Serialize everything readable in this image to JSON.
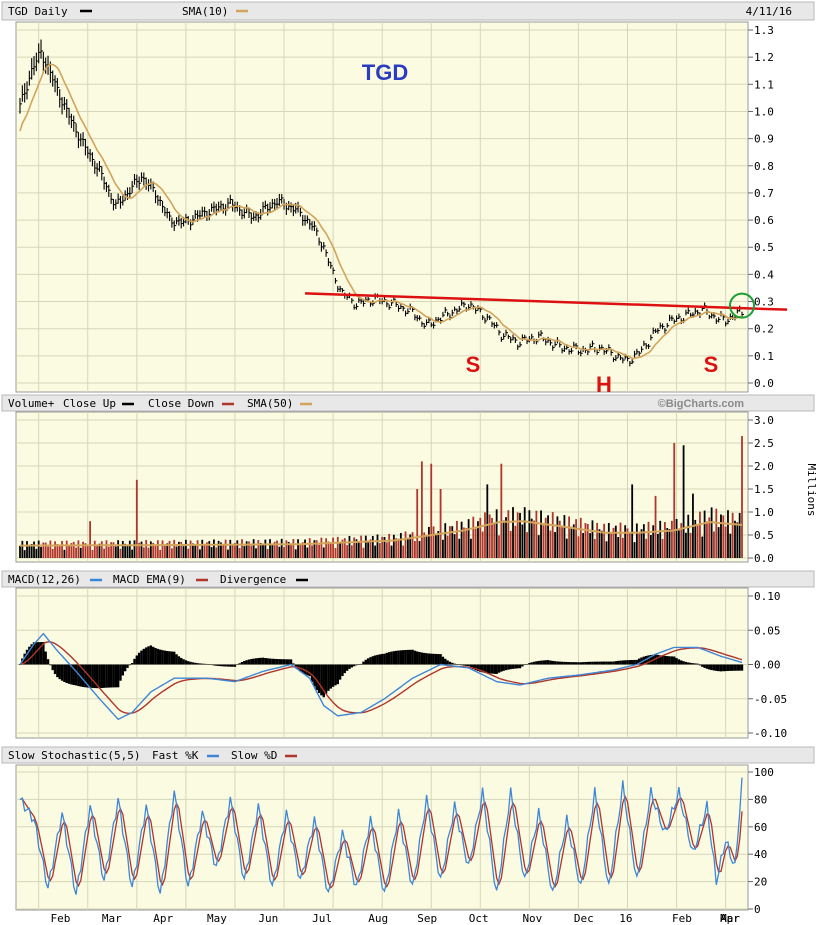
{
  "header": {
    "ticker_label": "TGD Daily",
    "sma_label": "SMA(10)",
    "date": "4/11/16"
  },
  "colors": {
    "panel_bg": "#fbfbe2",
    "header_bg": "#e8e8e8",
    "grid": "#d6d6b8",
    "price_bar": "#000000",
    "sma10": "#d4a35a",
    "vol_up": "#000000",
    "vol_down": "#b0352a",
    "sma50": "#d4a35a",
    "macd": "#3f86d6",
    "macd_ema": "#b0352a",
    "divergence": "#000000",
    "fast_k": "#3f86d6",
    "slow_d": "#b0352a",
    "annotation_red": "#dd1111",
    "title_blue": "#2a3cbf",
    "circle_green": "#1aa033"
  },
  "annotations": {
    "title": "TGD",
    "left_shoulder": "S",
    "head": "H",
    "right_shoulder": "S",
    "watermark": "©BigCharts.com"
  },
  "x_axis": {
    "month_labels": [
      "Feb",
      "Mar",
      "Apr",
      "May",
      "Jun",
      "Jul",
      "Aug",
      "Sep",
      "Oct",
      "Nov",
      "Dec",
      "16",
      "Feb",
      "Mar",
      "Apr"
    ]
  },
  "chart_data": [
    {
      "type": "line",
      "name": "price",
      "title": "TGD Daily",
      "legend": [
        "TGD Daily",
        "SMA(10)"
      ],
      "y_ticks": [
        "0.0",
        "0.1",
        "0.2",
        "0.3",
        "0.4",
        "0.5",
        "0.6",
        "0.7",
        "0.8",
        "0.9",
        "1.0",
        "1.1",
        "1.2",
        "1.3"
      ],
      "ylim": [
        0,
        1.3
      ],
      "neckline": [
        0.33,
        0.27
      ],
      "close_anchors": [
        [
          0,
          1.02
        ],
        [
          5,
          1.15
        ],
        [
          9,
          1.22
        ],
        [
          14,
          1.12
        ],
        [
          20,
          1.0
        ],
        [
          27,
          0.88
        ],
        [
          34,
          0.78
        ],
        [
          41,
          0.65
        ],
        [
          46,
          0.7
        ],
        [
          52,
          0.76
        ],
        [
          58,
          0.7
        ],
        [
          64,
          0.6
        ],
        [
          70,
          0.59
        ],
        [
          80,
          0.63
        ],
        [
          90,
          0.66
        ],
        [
          100,
          0.61
        ],
        [
          110,
          0.67
        ],
        [
          118,
          0.64
        ],
        [
          125,
          0.58
        ],
        [
          130,
          0.5
        ],
        [
          134,
          0.4
        ],
        [
          138,
          0.33
        ],
        [
          144,
          0.29
        ],
        [
          152,
          0.31
        ],
        [
          160,
          0.29
        ],
        [
          168,
          0.26
        ],
        [
          174,
          0.21
        ],
        [
          182,
          0.25
        ],
        [
          192,
          0.29
        ],
        [
          200,
          0.24
        ],
        [
          206,
          0.18
        ],
        [
          213,
          0.15
        ],
        [
          222,
          0.17
        ],
        [
          232,
          0.13
        ],
        [
          240,
          0.12
        ],
        [
          248,
          0.13
        ],
        [
          255,
          0.1
        ],
        [
          260,
          0.08
        ],
        [
          266,
          0.12
        ],
        [
          272,
          0.19
        ],
        [
          279,
          0.23
        ],
        [
          286,
          0.25
        ],
        [
          292,
          0.27
        ],
        [
          298,
          0.24
        ],
        [
          302,
          0.23
        ],
        [
          306,
          0.25
        ],
        [
          309,
          0.26
        ]
      ]
    },
    {
      "type": "bar",
      "name": "volume",
      "title": "Volume+ Close Up / Close Down",
      "legend": [
        "Volume+",
        "Close Up",
        "Close Down",
        "SMA(50)"
      ],
      "y_unit_label": "Millions",
      "y_ticks": [
        "0.0",
        "0.5",
        "1.0",
        "1.5",
        "2.0",
        "2.5",
        "3.0"
      ],
      "ylim": [
        0,
        3.0
      ],
      "spikes": [
        [
          30,
          0.8
        ],
        [
          50,
          1.7
        ],
        [
          170,
          1.5
        ],
        [
          172,
          2.1
        ],
        [
          176,
          2.05
        ],
        [
          180,
          1.5
        ],
        [
          200,
          1.6
        ],
        [
          206,
          2.05
        ],
        [
          262,
          1.6
        ],
        [
          272,
          1.35
        ],
        [
          280,
          2.5
        ],
        [
          284,
          2.45
        ],
        [
          288,
          1.4
        ],
        [
          296,
          1.1
        ],
        [
          309,
          2.65
        ]
      ],
      "sma50_anchors": [
        [
          0,
          0.27
        ],
        [
          60,
          0.28
        ],
        [
          120,
          0.3
        ],
        [
          160,
          0.38
        ],
        [
          190,
          0.6
        ],
        [
          205,
          0.78
        ],
        [
          215,
          0.8
        ],
        [
          230,
          0.7
        ],
        [
          250,
          0.55
        ],
        [
          265,
          0.55
        ],
        [
          280,
          0.6
        ],
        [
          295,
          0.78
        ],
        [
          309,
          0.72
        ]
      ]
    },
    {
      "type": "line",
      "name": "macd",
      "title": "MACD(12,26)",
      "legend": [
        "MACD(12,26)",
        "MACD EMA(9)",
        "Divergence"
      ],
      "y_ticks": [
        "0.10",
        "0.05",
        "0.00",
        "-0.05",
        "-0.10"
      ],
      "ylim": [
        -0.1,
        0.1
      ],
      "macd_anchors": [
        [
          0,
          0.0
        ],
        [
          6,
          0.03
        ],
        [
          10,
          0.045
        ],
        [
          16,
          0.02
        ],
        [
          24,
          -0.01
        ],
        [
          34,
          -0.05
        ],
        [
          42,
          -0.08
        ],
        [
          48,
          -0.07
        ],
        [
          56,
          -0.04
        ],
        [
          66,
          -0.02
        ],
        [
          80,
          -0.02
        ],
        [
          92,
          -0.025
        ],
        [
          104,
          -0.01
        ],
        [
          116,
          0.0
        ],
        [
          124,
          -0.02
        ],
        [
          130,
          -0.06
        ],
        [
          136,
          -0.075
        ],
        [
          146,
          -0.07
        ],
        [
          156,
          -0.05
        ],
        [
          168,
          -0.02
        ],
        [
          180,
          0.0
        ],
        [
          192,
          -0.005
        ],
        [
          204,
          -0.025
        ],
        [
          214,
          -0.03
        ],
        [
          226,
          -0.02
        ],
        [
          240,
          -0.015
        ],
        [
          254,
          -0.008
        ],
        [
          264,
          0.0
        ],
        [
          272,
          0.015
        ],
        [
          280,
          0.025
        ],
        [
          290,
          0.025
        ],
        [
          300,
          0.012
        ],
        [
          309,
          0.003
        ]
      ]
    },
    {
      "type": "line",
      "name": "slow-stochastic",
      "title": "Slow Stochastic(5,5)",
      "legend": [
        "Slow Stochastic(5,5)",
        "Fast %K",
        "Slow %D"
      ],
      "y_ticks": [
        "100",
        "80",
        "60",
        "40",
        "20",
        "0"
      ],
      "ylim": [
        0,
        100
      ],
      "k_anchors": [
        [
          0,
          80
        ],
        [
          6,
          65
        ],
        [
          12,
          15
        ],
        [
          18,
          70
        ],
        [
          24,
          10
        ],
        [
          30,
          75
        ],
        [
          36,
          20
        ],
        [
          42,
          80
        ],
        [
          48,
          15
        ],
        [
          54,
          75
        ],
        [
          60,
          10
        ],
        [
          66,
          85
        ],
        [
          72,
          15
        ],
        [
          78,
          70
        ],
        [
          84,
          30
        ],
        [
          90,
          80
        ],
        [
          96,
          20
        ],
        [
          102,
          75
        ],
        [
          108,
          15
        ],
        [
          114,
          70
        ],
        [
          120,
          20
        ],
        [
          126,
          65
        ],
        [
          132,
          10
        ],
        [
          138,
          55
        ],
        [
          144,
          15
        ],
        [
          150,
          65
        ],
        [
          156,
          10
        ],
        [
          162,
          70
        ],
        [
          168,
          15
        ],
        [
          174,
          80
        ],
        [
          180,
          20
        ],
        [
          186,
          75
        ],
        [
          192,
          30
        ],
        [
          198,
          85
        ],
        [
          204,
          10
        ],
        [
          210,
          85
        ],
        [
          216,
          20
        ],
        [
          222,
          70
        ],
        [
          228,
          10
        ],
        [
          234,
          65
        ],
        [
          240,
          15
        ],
        [
          246,
          85
        ],
        [
          252,
          15
        ],
        [
          258,
          90
        ],
        [
          264,
          20
        ],
        [
          270,
          85
        ],
        [
          276,
          55
        ],
        [
          282,
          85
        ],
        [
          288,
          40
        ],
        [
          294,
          75
        ],
        [
          298,
          20
        ],
        [
          302,
          50
        ],
        [
          306,
          30
        ],
        [
          309,
          92
        ]
      ]
    }
  ]
}
